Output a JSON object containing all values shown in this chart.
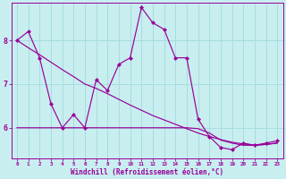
{
  "title": "",
  "xlabel": "Windchill (Refroidissement éolien,°C)",
  "ylabel": "",
  "bg_color": "#c8eef0",
  "grid_color": "#a8dde0",
  "line_color": "#990099",
  "xlim": [
    -0.5,
    23.5
  ],
  "ylim": [
    5.3,
    8.85
  ],
  "x_ticks": [
    0,
    1,
    2,
    3,
    4,
    5,
    6,
    7,
    8,
    9,
    10,
    11,
    12,
    13,
    14,
    15,
    16,
    17,
    18,
    19,
    20,
    21,
    22,
    23
  ],
  "y_ticks": [
    6,
    7,
    8
  ],
  "hours": [
    0,
    1,
    2,
    3,
    4,
    5,
    6,
    7,
    8,
    9,
    10,
    11,
    12,
    13,
    14,
    15,
    16,
    17,
    18,
    19,
    20,
    21,
    22,
    23
  ],
  "series1": [
    8.0,
    8.2,
    7.6,
    6.55,
    6.0,
    6.3,
    6.0,
    7.1,
    6.85,
    7.45,
    7.6,
    8.75,
    8.4,
    8.25,
    7.6,
    7.6,
    6.2,
    5.8,
    5.55,
    5.5,
    5.65,
    5.6,
    5.65,
    5.7
  ],
  "series2": [
    8.0,
    7.83,
    7.67,
    7.5,
    7.33,
    7.17,
    7.0,
    6.9,
    6.78,
    6.65,
    6.52,
    6.4,
    6.28,
    6.18,
    6.08,
    5.98,
    5.88,
    5.8,
    5.73,
    5.67,
    5.63,
    5.6,
    5.62,
    5.65
  ],
  "series3": [
    6.0,
    6.0,
    6.0,
    6.0,
    6.0,
    6.0,
    6.0,
    6.0,
    6.0,
    6.0,
    6.0,
    6.0,
    6.0,
    6.0,
    6.0,
    6.0,
    5.98,
    5.88,
    5.72,
    5.65,
    5.6,
    5.6,
    5.62,
    5.65
  ],
  "xlabel_fontsize": 5.5,
  "xtick_fontsize": 4.2,
  "ytick_fontsize": 6.0,
  "marker_size": 2.2,
  "line_width": 0.85
}
